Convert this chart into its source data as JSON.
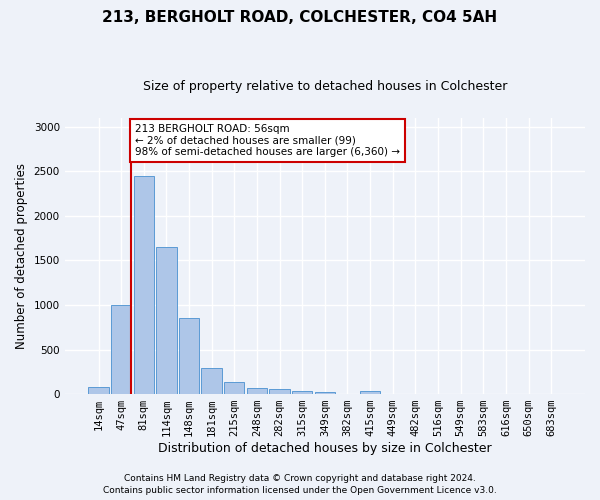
{
  "title1": "213, BERGHOLT ROAD, COLCHESTER, CO4 5AH",
  "title2": "Size of property relative to detached houses in Colchester",
  "xlabel": "Distribution of detached houses by size in Colchester",
  "ylabel": "Number of detached properties",
  "categories": [
    "14sqm",
    "47sqm",
    "81sqm",
    "114sqm",
    "148sqm",
    "181sqm",
    "215sqm",
    "248sqm",
    "282sqm",
    "315sqm",
    "349sqm",
    "382sqm",
    "415sqm",
    "449sqm",
    "482sqm",
    "516sqm",
    "549sqm",
    "583sqm",
    "616sqm",
    "650sqm",
    "683sqm"
  ],
  "values": [
    80,
    1000,
    2450,
    1650,
    850,
    290,
    140,
    65,
    55,
    40,
    25,
    5,
    35,
    5,
    5,
    5,
    0,
    0,
    0,
    0,
    0
  ],
  "bar_color": "#aec6e8",
  "bar_edge_color": "#5b9bd5",
  "annotation_box_text": "213 BERGHOLT ROAD: 56sqm\n← 2% of detached houses are smaller (99)\n98% of semi-detached houses are larger (6,360) →",
  "annotation_box_color": "#ffffff",
  "annotation_box_edge_color": "#cc0000",
  "vline_color": "#cc0000",
  "footer1": "Contains HM Land Registry data © Crown copyright and database right 2024.",
  "footer2": "Contains public sector information licensed under the Open Government Licence v3.0.",
  "bg_color": "#eef2f9",
  "plot_bg_color": "#eef2f9",
  "grid_color": "#ffffff",
  "ylim": [
    0,
    3100
  ],
  "title1_fontsize": 11,
  "title2_fontsize": 9,
  "ylabel_fontsize": 8.5,
  "xlabel_fontsize": 9,
  "tick_fontsize": 7.5,
  "footer_fontsize": 6.5
}
